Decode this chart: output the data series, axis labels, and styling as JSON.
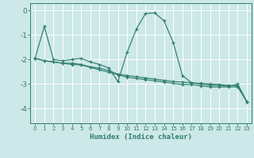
{
  "xlabel": "Humidex (Indice chaleur)",
  "bg_color": "#cde8e8",
  "grid_color": "#ffffff",
  "line_color": "#2e7d6e",
  "xlim": [
    -0.5,
    23.5
  ],
  "ylim": [
    -4.6,
    0.3
  ],
  "yticks": [
    0,
    -1,
    -2,
    -3,
    -4
  ],
  "xticks": [
    0,
    1,
    2,
    3,
    4,
    5,
    6,
    7,
    8,
    9,
    10,
    11,
    12,
    13,
    14,
    15,
    16,
    17,
    18,
    19,
    20,
    21,
    22,
    23
  ],
  "series1_x": [
    0,
    1,
    2,
    3,
    4,
    5,
    6,
    7,
    8,
    9,
    10,
    11,
    12,
    13,
    14,
    15,
    16,
    17,
    18,
    19,
    20,
    21,
    22,
    23
  ],
  "series1_y": [
    -1.95,
    -0.65,
    -2.0,
    -2.05,
    -2.0,
    -1.95,
    -2.1,
    -2.2,
    -2.35,
    -2.9,
    -1.7,
    -0.75,
    -0.12,
    -0.1,
    -0.42,
    -1.3,
    -2.65,
    -2.95,
    -3.0,
    -3.05,
    -3.05,
    -3.1,
    -3.0,
    -3.72
  ],
  "series2_x": [
    0,
    1,
    2,
    3,
    4,
    5,
    6,
    7,
    8,
    9,
    10,
    11,
    12,
    13,
    14,
    15,
    16,
    17,
    18,
    19,
    20,
    21,
    22,
    23
  ],
  "series2_y": [
    -1.95,
    -2.05,
    -2.1,
    -2.15,
    -2.15,
    -2.2,
    -2.3,
    -2.35,
    -2.45,
    -2.6,
    -2.65,
    -2.7,
    -2.75,
    -2.8,
    -2.85,
    -2.9,
    -2.92,
    -2.95,
    -2.97,
    -3.0,
    -3.02,
    -3.05,
    -3.07,
    -3.72
  ],
  "series3_x": [
    0,
    1,
    2,
    3,
    4,
    5,
    6,
    7,
    8,
    9,
    10,
    11,
    12,
    13,
    14,
    15,
    16,
    17,
    18,
    19,
    20,
    21,
    22,
    23
  ],
  "series3_y": [
    -1.95,
    -2.05,
    -2.1,
    -2.15,
    -2.2,
    -2.22,
    -2.32,
    -2.42,
    -2.52,
    -2.62,
    -2.72,
    -2.77,
    -2.82,
    -2.87,
    -2.92,
    -2.97,
    -3.02,
    -3.02,
    -3.07,
    -3.12,
    -3.12,
    -3.12,
    -3.12,
    -3.72
  ]
}
